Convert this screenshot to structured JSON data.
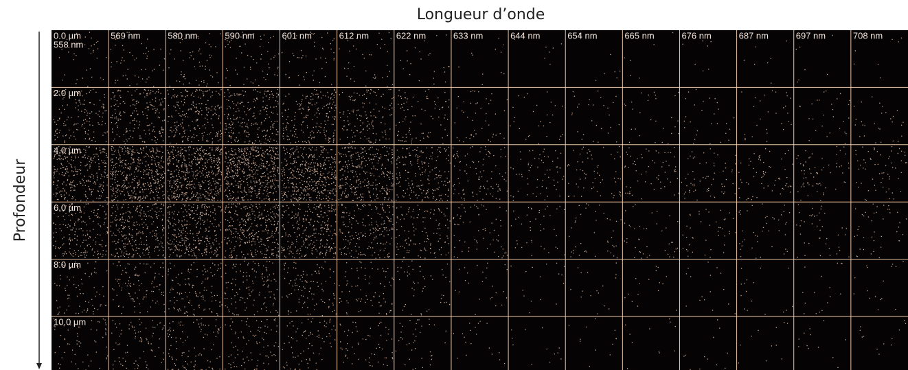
{
  "header": {
    "title": "Longueur d’onde"
  },
  "axis": {
    "label": "Profondeur"
  },
  "grid": {
    "wavelengths": [
      "558 nm",
      "569 nm",
      "580 nm",
      "590 nm",
      "601 nm",
      "612 nm",
      "622 nm",
      "633 nm",
      "644 nm",
      "654 nm",
      "665 nm",
      "676 nm",
      "687 nm",
      "697 nm",
      "708 nm"
    ],
    "depths": [
      "0.0 µm",
      "2.0 µm",
      "4.0 µm",
      "6.0 µm",
      "8.0 µm",
      "10.0 µm"
    ]
  }
}
